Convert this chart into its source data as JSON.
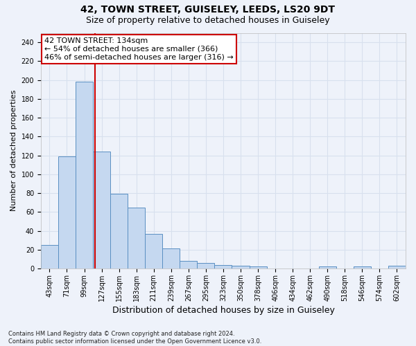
{
  "title_line1": "42, TOWN STREET, GUISELEY, LEEDS, LS20 9DT",
  "title_line2": "Size of property relative to detached houses in Guiseley",
  "xlabel": "Distribution of detached houses by size in Guiseley",
  "ylabel": "Number of detached properties",
  "categories": [
    "43sqm",
    "71sqm",
    "99sqm",
    "127sqm",
    "155sqm",
    "183sqm",
    "211sqm",
    "239sqm",
    "267sqm",
    "295sqm",
    "323sqm",
    "350sqm",
    "378sqm",
    "406sqm",
    "434sqm",
    "462sqm",
    "490sqm",
    "518sqm",
    "546sqm",
    "574sqm",
    "602sqm"
  ],
  "values": [
    25,
    119,
    198,
    124,
    79,
    65,
    37,
    21,
    8,
    6,
    4,
    3,
    2,
    0,
    0,
    0,
    2,
    0,
    2,
    0,
    3
  ],
  "bar_color": "#c5d8f0",
  "bar_edge_color": "#5a8fc2",
  "red_line_x": 2.6,
  "annotation_line1": "42 TOWN STREET: 134sqm",
  "annotation_line2": "← 54% of detached houses are smaller (366)",
  "annotation_line3": "46% of semi-detached houses are larger (316) →",
  "annotation_box_color": "#ffffff",
  "annotation_box_edge": "#cc0000",
  "ylim": [
    0,
    250
  ],
  "yticks": [
    0,
    20,
    40,
    60,
    80,
    100,
    120,
    140,
    160,
    180,
    200,
    220,
    240
  ],
  "background_color": "#eef2fa",
  "grid_color": "#d8e0ee",
  "footer": "Contains HM Land Registry data © Crown copyright and database right 2024.\nContains public sector information licensed under the Open Government Licence v3.0.",
  "title_fontsize": 10,
  "subtitle_fontsize": 9,
  "ylabel_fontsize": 8,
  "xlabel_fontsize": 9,
  "tick_fontsize": 7,
  "annotation_fontsize": 8
}
